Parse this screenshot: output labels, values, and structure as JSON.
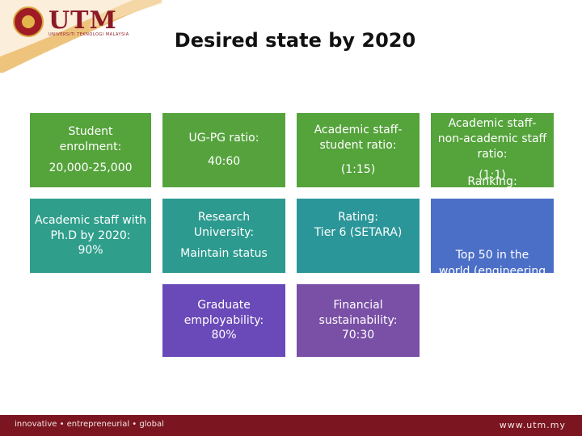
{
  "logo": {
    "text": "UTM",
    "subtitle": "UNIVERSITI TEKNOLOGI MALAYSIA"
  },
  "title": "Desired state by 2020",
  "colors": {
    "corner": "#e7b05a",
    "footer": "#7b1520",
    "green_tile": "#55a33b",
    "teal_tile": "#2c9a8f",
    "blue_tile": "#4b6fc7",
    "purple_tile": "#6a49b8"
  },
  "tiles": {
    "student_enrolment": {
      "line1": "Student enrolment:",
      "line2": "20,000-25,000"
    },
    "ug_pg_ratio": {
      "line1": "UG-PG ratio:",
      "line2": "40:60"
    },
    "staff_student_ratio": {
      "line1": "Academic staff-student ratio:",
      "line2": "(1:15)"
    },
    "staff_nonacademic_ratio": {
      "line1": "Academic staff-non-academic staff ratio:",
      "line2": "(1:1)",
      "overflow": "Ranking:"
    },
    "phd_staff": {
      "line1": "Academic staff with Ph.D by 2020:",
      "line2": "90%"
    },
    "research_university": {
      "line1": "Research University:",
      "line2": "Maintain status"
    },
    "setara_rating": {
      "line1": "Rating:",
      "line2": "Tier 6 (SETARA)"
    },
    "ranking": {
      "line1": "Top 50 in the",
      "line2": "world (engineering"
    },
    "graduate_employability": {
      "line1": "Graduate employability:",
      "line2": "80%"
    },
    "financial_sustainability": {
      "line1": "Financial sustainability:",
      "line2": "70:30"
    }
  },
  "footer": {
    "tagline": "innovative • entrepreneurial • global",
    "url": "www.utm.my"
  }
}
